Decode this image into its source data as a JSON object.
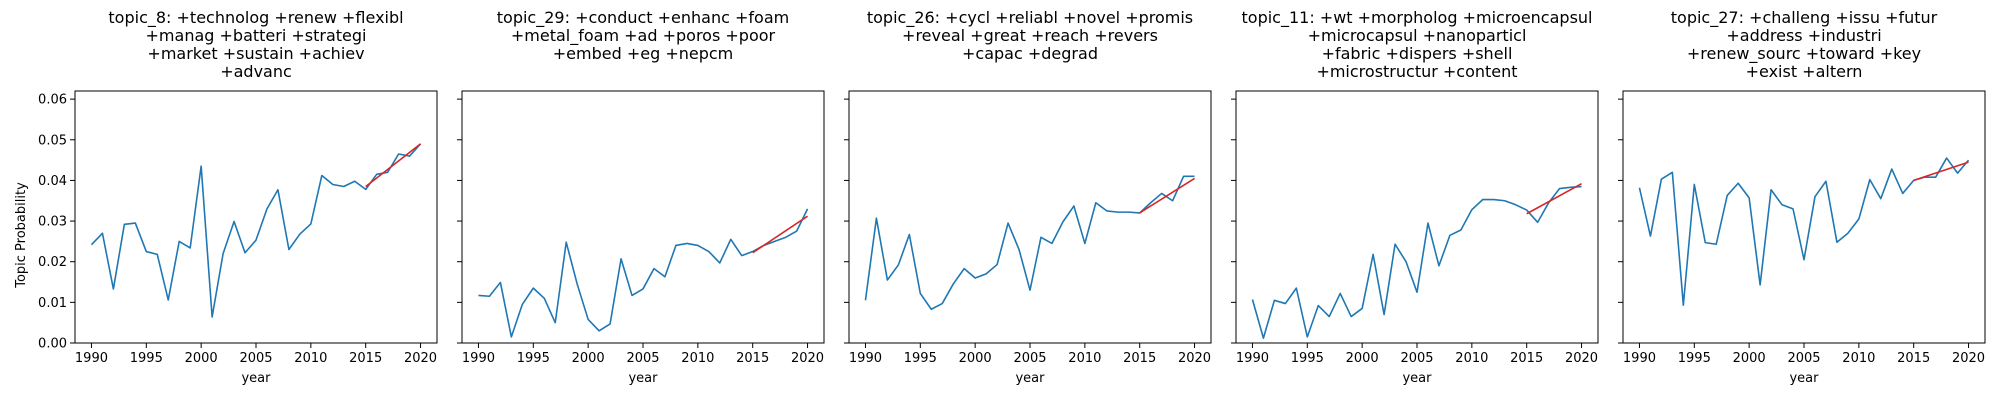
{
  "figure": {
    "ylabel": "Topic Probability",
    "colors": {
      "series": "#1f77b4",
      "trend": "#d62728",
      "axis": "#000000"
    }
  },
  "chart_data": [
    {
      "type": "line",
      "title_lines": [
        "topic_8: +technolog +renew +flexibl",
        "+manag +batteri +strategi",
        "+market +sustain +achiev",
        "+advanc"
      ],
      "xlabel": "year",
      "ylabel": "Topic Probability",
      "xlim": [
        1988.5,
        2021.5
      ],
      "ylim": [
        0,
        0.062
      ],
      "xticks": [
        1990,
        1995,
        2000,
        2005,
        2010,
        2015,
        2020
      ],
      "yticks": [
        0.0,
        0.01,
        0.02,
        0.03,
        0.04,
        0.05,
        0.06
      ],
      "ytick_labels": [
        "0.00",
        "0.01",
        "0.02",
        "0.03",
        "0.04",
        "0.05",
        "0.06"
      ],
      "x": [
        1990,
        1991,
        1992,
        1993,
        1994,
        1995,
        1996,
        1997,
        1998,
        1999,
        2000,
        2001,
        2002,
        2003,
        2004,
        2005,
        2006,
        2007,
        2008,
        2009,
        2010,
        2011,
        2012,
        2013,
        2014,
        2015,
        2016,
        2017,
        2018,
        2019,
        2020
      ],
      "series": [
        {
          "values": [
            0.0242,
            0.027,
            0.0133,
            0.0292,
            0.0295,
            0.0225,
            0.0218,
            0.0106,
            0.025,
            0.0234,
            0.0435,
            0.0064,
            0.022,
            0.0299,
            0.0222,
            0.0253,
            0.033,
            0.0377,
            0.023,
            0.0268,
            0.0293,
            0.0412,
            0.039,
            0.0385,
            0.0398,
            0.0378,
            0.0415,
            0.042,
            0.0465,
            0.046,
            0.049
          ]
        }
      ],
      "trend": {
        "x": [
          2015,
          2020
        ],
        "values": [
          0.0385,
          0.049
        ]
      },
      "grid": false,
      "legend": "none"
    },
    {
      "type": "line",
      "title_lines": [
        "topic_29: +conduct +enhanc +foam",
        "+metal_foam +ad +poros +poor",
        "+embed +eg +nepcm"
      ],
      "xlabel": "year",
      "ylabel": "",
      "xlim": [
        1988.5,
        2021.5
      ],
      "ylim": [
        0,
        0.062
      ],
      "xticks": [
        1990,
        1995,
        2000,
        2005,
        2010,
        2015,
        2020
      ],
      "yticks": [
        0.0,
        0.01,
        0.02,
        0.03,
        0.04,
        0.05,
        0.06
      ],
      "ytick_labels": [],
      "x": [
        1990,
        1991,
        1992,
        1993,
        1994,
        1995,
        1996,
        1997,
        1998,
        1999,
        2000,
        2001,
        2002,
        2003,
        2004,
        2005,
        2006,
        2007,
        2008,
        2009,
        2010,
        2011,
        2012,
        2013,
        2014,
        2015,
        2016,
        2017,
        2018,
        2019,
        2020
      ],
      "series": [
        {
          "values": [
            0.0117,
            0.0115,
            0.0149,
            0.0015,
            0.0095,
            0.0135,
            0.011,
            0.005,
            0.0248,
            0.0145,
            0.0058,
            0.003,
            0.0047,
            0.0207,
            0.0117,
            0.0133,
            0.0183,
            0.0163,
            0.024,
            0.0245,
            0.024,
            0.0225,
            0.0197,
            0.0255,
            0.0215,
            0.0225,
            0.024,
            0.025,
            0.026,
            0.0275,
            0.033
          ]
        }
      ],
      "trend": {
        "x": [
          2015,
          2020
        ],
        "values": [
          0.0222,
          0.0312
        ]
      },
      "grid": false,
      "legend": "none"
    },
    {
      "type": "line",
      "title_lines": [
        "topic_26: +cycl +reliabl +novel +promis",
        "+reveal +great +reach +revers",
        "+capac +degrad"
      ],
      "xlabel": "year",
      "ylabel": "",
      "xlim": [
        1988.5,
        2021.5
      ],
      "ylim": [
        0,
        0.062
      ],
      "xticks": [
        1990,
        1995,
        2000,
        2005,
        2010,
        2015,
        2020
      ],
      "yticks": [
        0.0,
        0.01,
        0.02,
        0.03,
        0.04,
        0.05,
        0.06
      ],
      "ytick_labels": [],
      "x": [
        1990,
        1991,
        1992,
        1993,
        1994,
        1995,
        1996,
        1997,
        1998,
        1999,
        2000,
        2001,
        2002,
        2003,
        2004,
        2005,
        2006,
        2007,
        2008,
        2009,
        2010,
        2011,
        2012,
        2013,
        2014,
        2015,
        2016,
        2017,
        2018,
        2019,
        2020
      ],
      "series": [
        {
          "values": [
            0.0105,
            0.0307,
            0.0155,
            0.0192,
            0.0267,
            0.0122,
            0.0083,
            0.0097,
            0.0145,
            0.0183,
            0.016,
            0.017,
            0.0193,
            0.0295,
            0.023,
            0.013,
            0.026,
            0.0245,
            0.0298,
            0.0337,
            0.0245,
            0.0345,
            0.0325,
            0.0322,
            0.0322,
            0.032,
            0.0345,
            0.0368,
            0.035,
            0.041,
            0.041
          ]
        }
      ],
      "trend": {
        "x": [
          2015,
          2020
        ],
        "values": [
          0.032,
          0.0405
        ]
      },
      "grid": false,
      "legend": "none"
    },
    {
      "type": "line",
      "title_lines": [
        "topic_11: +wt +morpholog +microencapsul",
        "+microcapsul +nanoparticl",
        "+fabric +dispers +shell",
        "+microstructur +content"
      ],
      "xlabel": "year",
      "ylabel": "",
      "xlim": [
        1988.5,
        2021.5
      ],
      "ylim": [
        0,
        0.062
      ],
      "xticks": [
        1990,
        1995,
        2000,
        2005,
        2010,
        2015,
        2020
      ],
      "yticks": [
        0.0,
        0.01,
        0.02,
        0.03,
        0.04,
        0.05,
        0.06
      ],
      "ytick_labels": [],
      "x": [
        1990,
        1991,
        1992,
        1993,
        1994,
        1995,
        1996,
        1997,
        1998,
        1999,
        2000,
        2001,
        2002,
        2003,
        2004,
        2005,
        2006,
        2007,
        2008,
        2009,
        2010,
        2011,
        2012,
        2013,
        2014,
        2015,
        2016,
        2017,
        2018,
        2019,
        2020
      ],
      "series": [
        {
          "values": [
            0.0107,
            0.0012,
            0.0105,
            0.0097,
            0.0135,
            0.0015,
            0.0092,
            0.0065,
            0.0122,
            0.0065,
            0.0085,
            0.0218,
            0.007,
            0.0243,
            0.02,
            0.0125,
            0.0295,
            0.019,
            0.0265,
            0.0278,
            0.0328,
            0.0353,
            0.0353,
            0.035,
            0.034,
            0.0327,
            0.0297,
            0.0345,
            0.038,
            0.0383,
            0.0385
          ]
        }
      ],
      "trend": {
        "x": [
          2015,
          2020
        ],
        "values": [
          0.0318,
          0.0392
        ]
      },
      "grid": false,
      "legend": "none"
    },
    {
      "type": "line",
      "title_lines": [
        "topic_27: +challeng +issu +futur",
        "+address +industri",
        "+renew_sourc +toward +key",
        "+exist +altern"
      ],
      "xlabel": "year",
      "ylabel": "",
      "xlim": [
        1988.5,
        2021.5
      ],
      "ylim": [
        0,
        0.062
      ],
      "xticks": [
        1990,
        1995,
        2000,
        2005,
        2010,
        2015,
        2020
      ],
      "yticks": [
        0.0,
        0.01,
        0.02,
        0.03,
        0.04,
        0.05,
        0.06
      ],
      "ytick_labels": [],
      "x": [
        1990,
        1991,
        1992,
        1993,
        1994,
        1995,
        1996,
        1997,
        1998,
        1999,
        2000,
        2001,
        2002,
        2003,
        2004,
        2005,
        2006,
        2007,
        2008,
        2009,
        2010,
        2011,
        2012,
        2013,
        2014,
        2015,
        2016,
        2017,
        2018,
        2019,
        2020
      ],
      "series": [
        {
          "values": [
            0.0382,
            0.0263,
            0.0403,
            0.042,
            0.0093,
            0.039,
            0.0247,
            0.0243,
            0.0363,
            0.0393,
            0.0357,
            0.0143,
            0.0377,
            0.034,
            0.033,
            0.0205,
            0.036,
            0.0398,
            0.0248,
            0.027,
            0.0305,
            0.0402,
            0.0355,
            0.0428,
            0.0368,
            0.04,
            0.0408,
            0.0408,
            0.0455,
            0.0418,
            0.045
          ]
        }
      ],
      "trend": {
        "x": [
          2015,
          2020
        ],
        "values": [
          0.04,
          0.0445
        ]
      },
      "grid": false,
      "legend": "none"
    }
  ]
}
